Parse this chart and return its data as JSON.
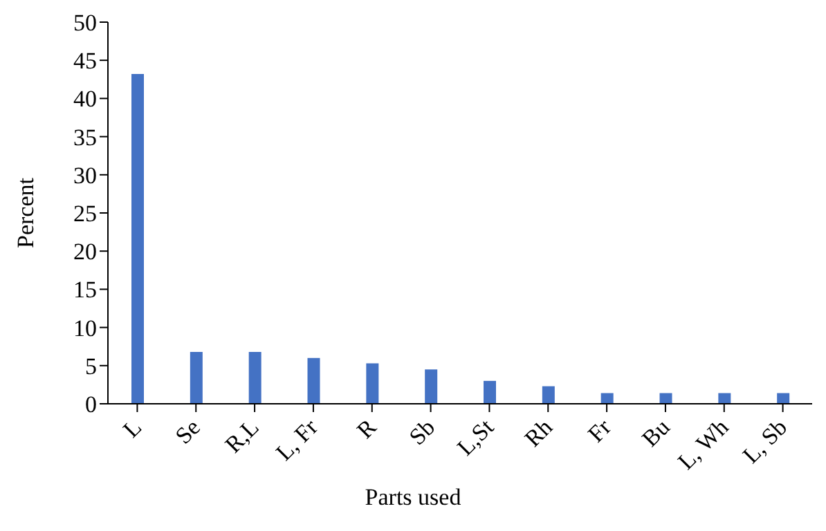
{
  "chart_data": {
    "type": "bar",
    "xlabel": "Parts used",
    "ylabel": "Percent",
    "categories": [
      "L",
      "Se",
      "R,L",
      "L, Fr",
      "R",
      "Sb",
      "L,St",
      "Rh",
      "Fr",
      "Bu",
      "L, Wh",
      "L, Sb"
    ],
    "values": [
      43.2,
      6.8,
      6.8,
      6.0,
      5.3,
      4.5,
      3.0,
      2.3,
      1.4,
      1.4,
      1.4,
      1.4
    ],
    "color": "#4472c4",
    "ylim": [
      0,
      50
    ],
    "yticks": [
      0,
      5,
      10,
      15,
      20,
      25,
      30,
      35,
      40,
      45,
      50
    ],
    "grid": false,
    "legend": false
  }
}
